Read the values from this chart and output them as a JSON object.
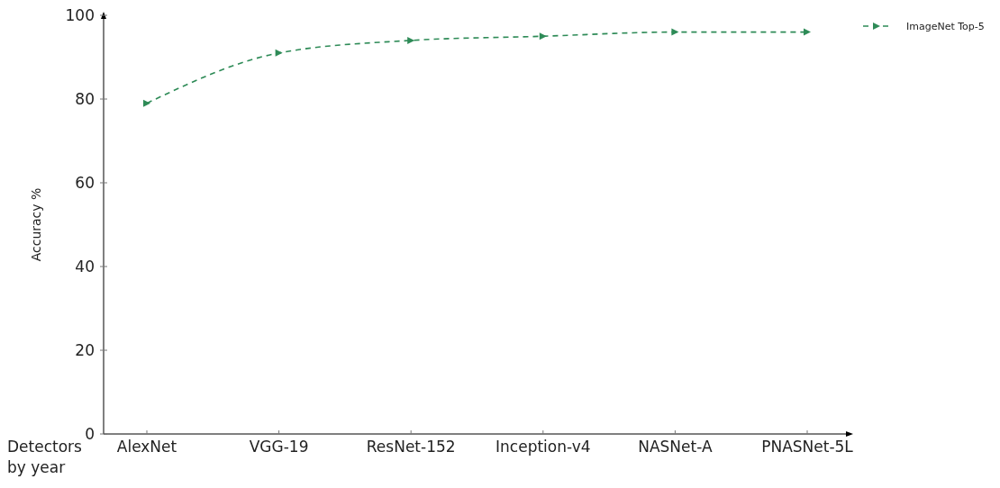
{
  "chart_data": {
    "type": "line",
    "xlabel": "Detectors by year",
    "ylabel": "Accuracy %",
    "categories": [
      "AlexNet",
      "VGG-19",
      "ResNet-152",
      "Inception-v4",
      "NASNet-A",
      "PNASNet-5L"
    ],
    "series": [
      {
        "name": "ImageNet Top-5",
        "color": "#2e8b57",
        "values": [
          79,
          91,
          94,
          95,
          96,
          96
        ]
      }
    ],
    "ylim": [
      0,
      100
    ],
    "yticks": [
      0,
      20,
      40,
      60,
      80,
      100
    ],
    "grid": false,
    "legend": "top right",
    "marker": "triangle",
    "line_style": "dashed"
  }
}
